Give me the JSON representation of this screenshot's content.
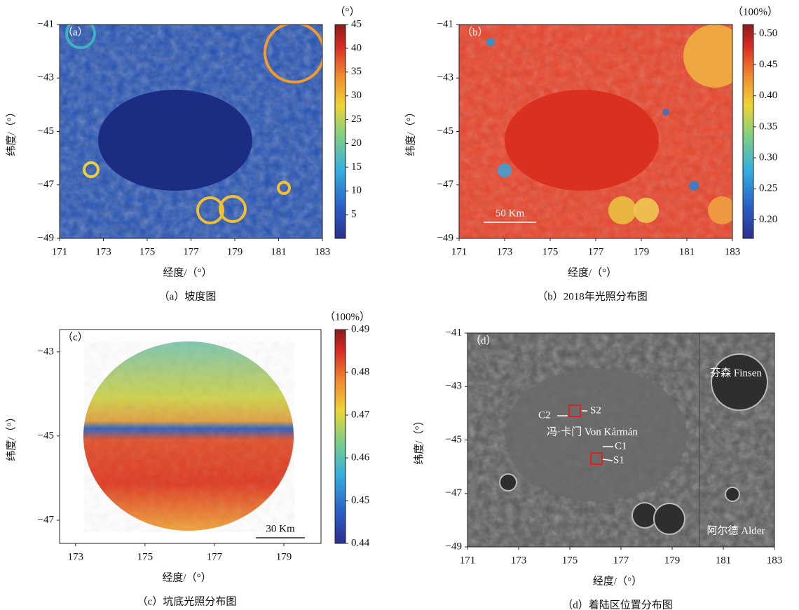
{
  "chart_data": [
    {
      "type": "heatmap",
      "panel_label": "（a）",
      "caption": "（a）坡度图",
      "xlabel": "经度/（°）",
      "ylabel": "纬度/（°）",
      "colormap": "jet",
      "xlim": [
        171,
        183
      ],
      "xticks": [
        171,
        173,
        175,
        177,
        179,
        181,
        183
      ],
      "ylim": [
        -49,
        -41
      ],
      "yticks": [
        {
          "value": -49,
          "label": "−49"
        },
        {
          "value": -47,
          "label": "−47"
        },
        {
          "value": -45,
          "label": "−45"
        },
        {
          "value": -43,
          "label": "−43"
        },
        {
          "value": -41,
          "label": "−41"
        }
      ],
      "colorbar": {
        "unit": "（°）",
        "lim": [
          0,
          45
        ],
        "ticks": [
          5,
          10,
          15,
          20,
          25,
          30,
          35,
          40,
          45
        ]
      }
    },
    {
      "type": "heatmap",
      "panel_label": "（b）",
      "caption": "（b）2018年光照分布图",
      "xlabel": "经度/（°）",
      "ylabel": "纬度/（°）",
      "colormap": "jet",
      "scale_bar": "50 Km",
      "xlim": [
        171,
        183
      ],
      "xticks": [
        171,
        173,
        175,
        177,
        179,
        181,
        183
      ],
      "ylim": [
        -49,
        -41
      ],
      "yticks": [
        {
          "value": -49,
          "label": "−49"
        },
        {
          "value": -47,
          "label": "−47"
        },
        {
          "value": -45,
          "label": "−45"
        },
        {
          "value": -43,
          "label": "−43"
        },
        {
          "value": -41,
          "label": "−41"
        }
      ],
      "colorbar": {
        "unit": "（100%）",
        "lim": [
          0.17,
          0.515
        ],
        "ticks": [
          {
            "value": 0.2,
            "label": "0.20"
          },
          0.25,
          {
            "value": 0.3,
            "label": "0.30"
          },
          0.35,
          {
            "value": 0.4,
            "label": "0.40"
          },
          0.45,
          {
            "value": 0.5,
            "label": "0.50"
          }
        ]
      }
    },
    {
      "type": "heatmap",
      "panel_label": "（c）",
      "caption": "（c）坑底光照分布图",
      "xlabel": "经度/（°）",
      "ylabel": "纬度/（°）",
      "colormap": "jet",
      "scale_bar": "30 Km",
      "xlim": [
        172.54,
        180.07
      ],
      "xticks": [
        173,
        175,
        177,
        179
      ],
      "ylim": [
        -47.55,
        -42.47
      ],
      "yticks": [
        {
          "value": -47,
          "label": "−47"
        },
        {
          "value": -45,
          "label": "−45"
        },
        {
          "value": -43,
          "label": "−43"
        }
      ],
      "colorbar": {
        "unit": "（100%）",
        "lim": [
          0.44,
          0.49
        ],
        "ticks": [
          0.44,
          0.45,
          0.46,
          0.47,
          0.48,
          0.49
        ]
      }
    },
    {
      "type": "image",
      "panel_label": "（d）",
      "caption": "（d）着陆区位置分布图",
      "xlabel": "经度/（°）",
      "ylabel": "纬度/（°）",
      "colormap": "gray",
      "xlim": [
        171,
        183
      ],
      "xticks": [
        171,
        173,
        175,
        177,
        179,
        181,
        183
      ],
      "ylim": [
        -49,
        -41
      ],
      "yticks": [
        {
          "value": -49,
          "label": "−49"
        },
        {
          "value": -47,
          "label": "−47"
        },
        {
          "value": -45,
          "label": "−45"
        },
        {
          "value": -43,
          "label": "−43"
        },
        {
          "value": -41,
          "label": "−41"
        }
      ],
      "annotations": [
        "芬森 Finsen",
        "冯·卡门 Von Kármán",
        "阿尔德 Alder",
        "C1",
        "C2",
        "S1",
        "S2"
      ]
    }
  ]
}
